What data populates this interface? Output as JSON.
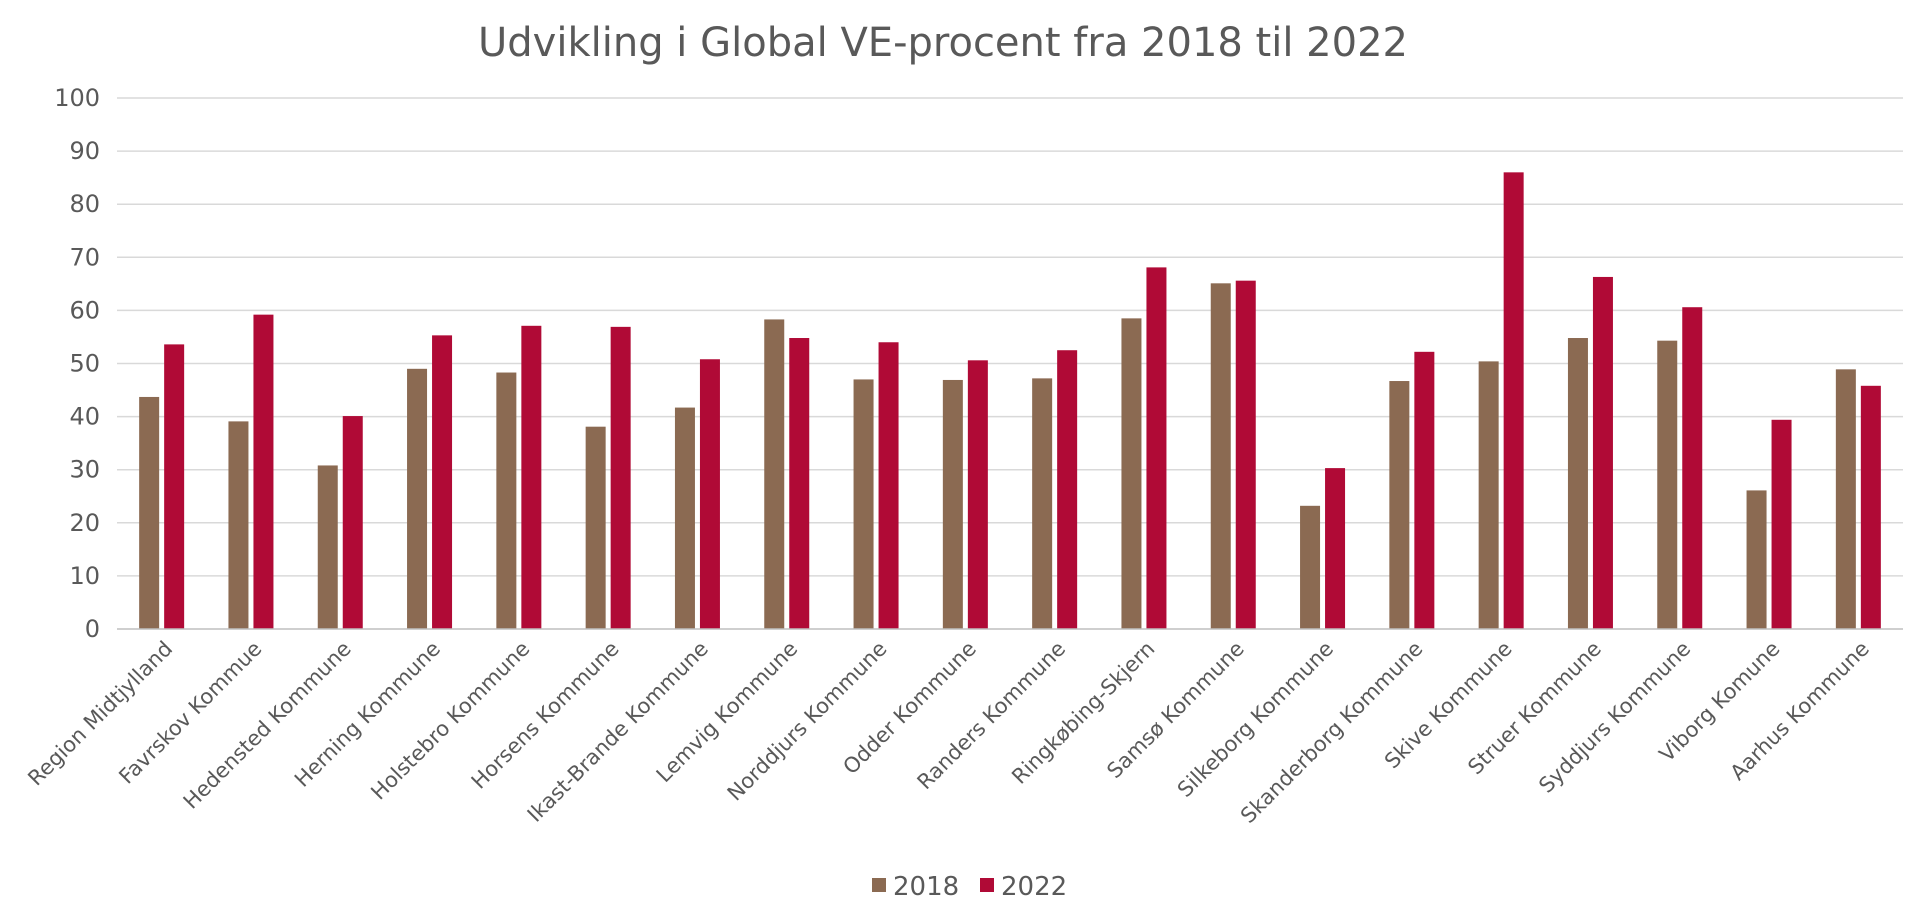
{
  "chart_data": {
    "type": "bar",
    "title": "Udvikling i Global VE-procent  fra 2018 til 2022",
    "xlabel": "",
    "ylabel": "",
    "ylim": [
      0,
      100
    ],
    "yticks": [
      "0",
      "10",
      "20",
      "30",
      "40",
      "50",
      "60",
      "70",
      "80",
      "90",
      "100"
    ],
    "grid": true,
    "legend_position": "bottom",
    "categories": [
      "Region Midtjylland",
      "Favrskov Kommue",
      "Hedensted Kommune",
      "Herning Kommune",
      "Holstebro Kommune",
      "Horsens Kommune",
      "Ikast-Brande Kommune",
      "Lemvig Kommune",
      "Norddjurs Kommune",
      "Odder Kommune",
      "Randers Kommune",
      "Ringkøbing-Skjern",
      "Samsø Kommune",
      "Silkeborg Kommune",
      "Skanderborg Kommune",
      "Skive Kommune",
      "Struer Kommune",
      "Syddjurs Kommune",
      "Viborg Komune",
      "Aarhus Kommune"
    ],
    "series": [
      {
        "name": "2018",
        "color": "#8B6A52",
        "values": [
          43.7,
          39.1,
          30.8,
          49.0,
          48.3,
          38.1,
          41.7,
          58.3,
          47.0,
          46.9,
          47.2,
          58.5,
          65.1,
          23.2,
          46.7,
          50.4,
          54.8,
          54.3,
          26.1,
          48.9
        ]
      },
      {
        "name": "2022",
        "color": "#B00A36",
        "values": [
          53.6,
          59.2,
          40.1,
          55.3,
          57.1,
          56.9,
          50.8,
          54.8,
          54.0,
          50.6,
          52.5,
          68.1,
          65.6,
          30.3,
          52.2,
          86.0,
          66.3,
          60.6,
          39.4,
          45.8
        ]
      }
    ]
  }
}
